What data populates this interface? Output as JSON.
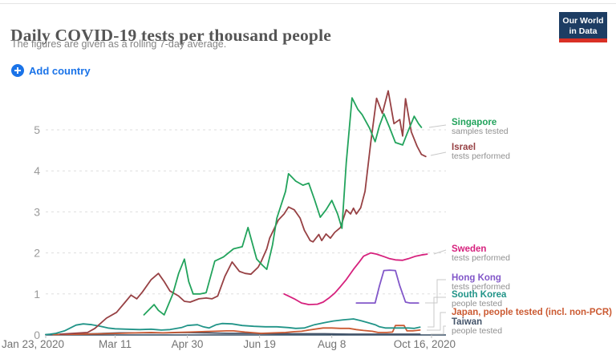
{
  "header": {
    "title": "Daily COVID-19 tests per thousand people",
    "subtitle": "The figures are given as a rolling 7-day average.",
    "logo": {
      "line1": "Our World",
      "line2": "in Data"
    }
  },
  "toolbar": {
    "add_country_label": "Add country"
  },
  "chart_data": {
    "type": "line",
    "title": "Daily COVID-19 tests per thousand people",
    "subtitle": "The figures are given as a rolling 7-day average.",
    "ylabel": "",
    "xlabel": "",
    "ylim": [
      0,
      6
    ],
    "grid": true,
    "legend_position": "right",
    "x_unit": "days since Jan 23, 2020",
    "y_ticks": [
      0,
      1,
      2,
      3,
      4,
      5
    ],
    "x_ticks": [
      {
        "label": "Jan 23, 2020",
        "day": 0
      },
      {
        "label": "Mar 11",
        "day": 48
      },
      {
        "label": "Apr 30",
        "day": 98
      },
      {
        "label": "Jun 19",
        "day": 148
      },
      {
        "label": "Aug 8",
        "day": 198
      },
      {
        "label": "Oct 16, 2020",
        "day": 267
      }
    ],
    "series": [
      {
        "name": "Singapore",
        "sublabel": "samples tested",
        "color": "#22a35c",
        "points": [
          [
            68,
            0.49
          ],
          [
            75,
            0.74
          ],
          [
            78,
            0.6
          ],
          [
            82,
            0.49
          ],
          [
            88,
            1.0
          ],
          [
            92,
            1.5
          ],
          [
            96,
            1.85
          ],
          [
            99,
            1.3
          ],
          [
            102,
            1.0
          ],
          [
            107,
            1.0
          ],
          [
            111,
            1.03
          ],
          [
            117,
            1.8
          ],
          [
            123,
            1.9
          ],
          [
            130,
            2.1
          ],
          [
            136,
            2.15
          ],
          [
            140,
            2.62
          ],
          [
            146,
            1.85
          ],
          [
            150,
            1.7
          ],
          [
            153,
            1.6
          ],
          [
            157,
            2.2
          ],
          [
            160,
            2.85
          ],
          [
            166,
            3.5
          ],
          [
            168,
            3.93
          ],
          [
            173,
            3.75
          ],
          [
            178,
            3.65
          ],
          [
            182,
            3.7
          ],
          [
            186,
            3.3
          ],
          [
            190,
            2.87
          ],
          [
            194,
            3.05
          ],
          [
            198,
            3.28
          ],
          [
            202,
            2.95
          ],
          [
            205,
            2.6
          ],
          [
            208,
            4.2
          ],
          [
            212,
            5.78
          ],
          [
            216,
            5.5
          ],
          [
            219,
            5.37
          ],
          [
            224,
            5.05
          ],
          [
            228,
            4.71
          ],
          [
            231,
            5.1
          ],
          [
            234,
            5.39
          ],
          [
            238,
            5.05
          ],
          [
            242,
            4.69
          ],
          [
            247,
            4.63
          ],
          [
            250,
            4.9
          ],
          [
            255,
            5.33
          ],
          [
            258,
            5.15
          ],
          [
            260,
            5.06
          ]
        ]
      },
      {
        "name": "Israel",
        "sublabel": "tests performed",
        "color": "#974144",
        "points": [
          [
            10,
            0.02
          ],
          [
            29,
            0.06
          ],
          [
            34,
            0.16
          ],
          [
            42,
            0.41
          ],
          [
            49,
            0.55
          ],
          [
            55,
            0.8
          ],
          [
            59,
            0.97
          ],
          [
            63,
            0.88
          ],
          [
            67,
            1.05
          ],
          [
            73,
            1.35
          ],
          [
            78,
            1.5
          ],
          [
            82,
            1.3
          ],
          [
            86,
            1.07
          ],
          [
            92,
            0.95
          ],
          [
            96,
            0.82
          ],
          [
            100,
            0.8
          ],
          [
            106,
            0.88
          ],
          [
            111,
            0.9
          ],
          [
            115,
            0.88
          ],
          [
            119,
            0.95
          ],
          [
            124,
            1.43
          ],
          [
            129,
            1.78
          ],
          [
            134,
            1.55
          ],
          [
            138,
            1.5
          ],
          [
            142,
            1.48
          ],
          [
            147,
            1.65
          ],
          [
            149,
            1.78
          ],
          [
            153,
            2.1
          ],
          [
            155,
            2.36
          ],
          [
            161,
            2.8
          ],
          [
            165,
            2.95
          ],
          [
            168,
            3.12
          ],
          [
            172,
            3.05
          ],
          [
            176,
            2.85
          ],
          [
            179,
            2.55
          ],
          [
            183,
            2.3
          ],
          [
            185,
            2.27
          ],
          [
            189,
            2.45
          ],
          [
            191,
            2.3
          ],
          [
            194,
            2.46
          ],
          [
            197,
            2.36
          ],
          [
            200,
            2.5
          ],
          [
            204,
            2.62
          ],
          [
            208,
            3.05
          ],
          [
            211,
            2.95
          ],
          [
            213,
            3.09
          ],
          [
            215,
            2.95
          ],
          [
            218,
            3.1
          ],
          [
            221,
            3.5
          ],
          [
            225,
            4.7
          ],
          [
            229,
            5.77
          ],
          [
            233,
            5.4
          ],
          [
            237,
            5.95
          ],
          [
            241,
            5.15
          ],
          [
            245,
            5.25
          ],
          [
            247,
            4.85
          ],
          [
            249,
            5.76
          ],
          [
            253,
            4.95
          ],
          [
            257,
            4.6
          ],
          [
            260,
            4.4
          ],
          [
            263,
            4.35
          ]
        ]
      },
      {
        "name": "Sweden",
        "sublabel": "tests performed",
        "color": "#d6217d",
        "points": [
          [
            165,
            1.0
          ],
          [
            168,
            0.95
          ],
          [
            172,
            0.88
          ],
          [
            177,
            0.78
          ],
          [
            182,
            0.74
          ],
          [
            188,
            0.75
          ],
          [
            192,
            0.8
          ],
          [
            196,
            0.9
          ],
          [
            200,
            1.02
          ],
          [
            204,
            1.18
          ],
          [
            208,
            1.35
          ],
          [
            213,
            1.6
          ],
          [
            217,
            1.78
          ],
          [
            220,
            1.92
          ],
          [
            225,
            2.0
          ],
          [
            229,
            1.97
          ],
          [
            234,
            1.91
          ],
          [
            238,
            1.86
          ],
          [
            242,
            1.83
          ],
          [
            247,
            1.82
          ],
          [
            251,
            1.86
          ],
          [
            256,
            1.92
          ],
          [
            260,
            1.95
          ],
          [
            264,
            1.97
          ]
        ]
      },
      {
        "name": "Hong Kong",
        "sublabel": "tests performed",
        "color": "#8257c9",
        "points": [
          [
            215,
            0.78
          ],
          [
            222,
            0.78
          ],
          [
            228,
            0.78
          ],
          [
            231,
            1.2
          ],
          [
            234,
            1.57
          ],
          [
            238,
            1.58
          ],
          [
            242,
            1.57
          ],
          [
            245,
            1.2
          ],
          [
            249,
            0.8
          ],
          [
            252,
            0.78
          ],
          [
            258,
            0.78
          ]
        ]
      },
      {
        "name": "South Korea",
        "sublabel": "people tested",
        "color": "#219488",
        "points": [
          [
            0,
            0.01
          ],
          [
            3,
            0.02
          ],
          [
            7,
            0.04
          ],
          [
            13,
            0.1
          ],
          [
            17,
            0.17
          ],
          [
            21,
            0.24
          ],
          [
            26,
            0.27
          ],
          [
            32,
            0.25
          ],
          [
            38,
            0.21
          ],
          [
            43,
            0.17
          ],
          [
            48,
            0.15
          ],
          [
            56,
            0.14
          ],
          [
            65,
            0.13
          ],
          [
            73,
            0.14
          ],
          [
            80,
            0.12
          ],
          [
            86,
            0.13
          ],
          [
            94,
            0.18
          ],
          [
            98,
            0.23
          ],
          [
            105,
            0.25
          ],
          [
            109,
            0.2
          ],
          [
            113,
            0.17
          ],
          [
            118,
            0.25
          ],
          [
            122,
            0.28
          ],
          [
            129,
            0.27
          ],
          [
            136,
            0.23
          ],
          [
            144,
            0.21
          ],
          [
            152,
            0.2
          ],
          [
            160,
            0.2
          ],
          [
            168,
            0.18
          ],
          [
            173,
            0.16
          ],
          [
            179,
            0.17
          ],
          [
            186,
            0.25
          ],
          [
            193,
            0.3
          ],
          [
            199,
            0.34
          ],
          [
            206,
            0.37
          ],
          [
            210,
            0.38
          ],
          [
            213,
            0.39
          ],
          [
            218,
            0.35
          ],
          [
            223,
            0.3
          ],
          [
            228,
            0.25
          ],
          [
            231,
            0.2
          ],
          [
            235,
            0.17
          ],
          [
            240,
            0.17
          ],
          [
            245,
            0.17
          ],
          [
            251,
            0.17
          ],
          [
            255,
            0.16
          ],
          [
            259,
            0.19
          ]
        ]
      },
      {
        "name": "Japan, people tested (incl. non-PCR)",
        "sublabel": "",
        "color": "#cb5a32",
        "points": [
          [
            5,
            0.01
          ],
          [
            24,
            0.02
          ],
          [
            40,
            0.03
          ],
          [
            51,
            0.04
          ],
          [
            62,
            0.05
          ],
          [
            73,
            0.06
          ],
          [
            81,
            0.05
          ],
          [
            89,
            0.06
          ],
          [
            100,
            0.07
          ],
          [
            108,
            0.08
          ],
          [
            117,
            0.09
          ],
          [
            125,
            0.1
          ],
          [
            130,
            0.1
          ],
          [
            138,
            0.07
          ],
          [
            145,
            0.05
          ],
          [
            149,
            0.04
          ],
          [
            158,
            0.05
          ],
          [
            166,
            0.06
          ],
          [
            172,
            0.08
          ],
          [
            177,
            0.09
          ],
          [
            182,
            0.12
          ],
          [
            188,
            0.15
          ],
          [
            192,
            0.17
          ],
          [
            198,
            0.17
          ],
          [
            204,
            0.16
          ],
          [
            210,
            0.16
          ],
          [
            215,
            0.13
          ],
          [
            220,
            0.11
          ],
          [
            226,
            0.09
          ],
          [
            230,
            0.06
          ],
          [
            236,
            0.06
          ],
          [
            240,
            0.07
          ],
          [
            242,
            0.23
          ],
          [
            248,
            0.23
          ],
          [
            250,
            0.1
          ],
          [
            254,
            0.1
          ],
          [
            259,
            0.12
          ]
        ]
      },
      {
        "name": "Taiwan",
        "sublabel": "people tested",
        "color": "#44546a",
        "points": [
          [
            0,
            0.01
          ],
          [
            18,
            0.02
          ],
          [
            34,
            0.03
          ],
          [
            51,
            0.05
          ],
          [
            67,
            0.05
          ],
          [
            84,
            0.05
          ],
          [
            95,
            0.06
          ],
          [
            111,
            0.05
          ],
          [
            127,
            0.04
          ],
          [
            144,
            0.04
          ],
          [
            160,
            0.03
          ],
          [
            177,
            0.03
          ],
          [
            193,
            0.03
          ],
          [
            210,
            0.02
          ],
          [
            226,
            0.02
          ],
          [
            242,
            0.02
          ],
          [
            259,
            0.02
          ]
        ]
      }
    ]
  }
}
